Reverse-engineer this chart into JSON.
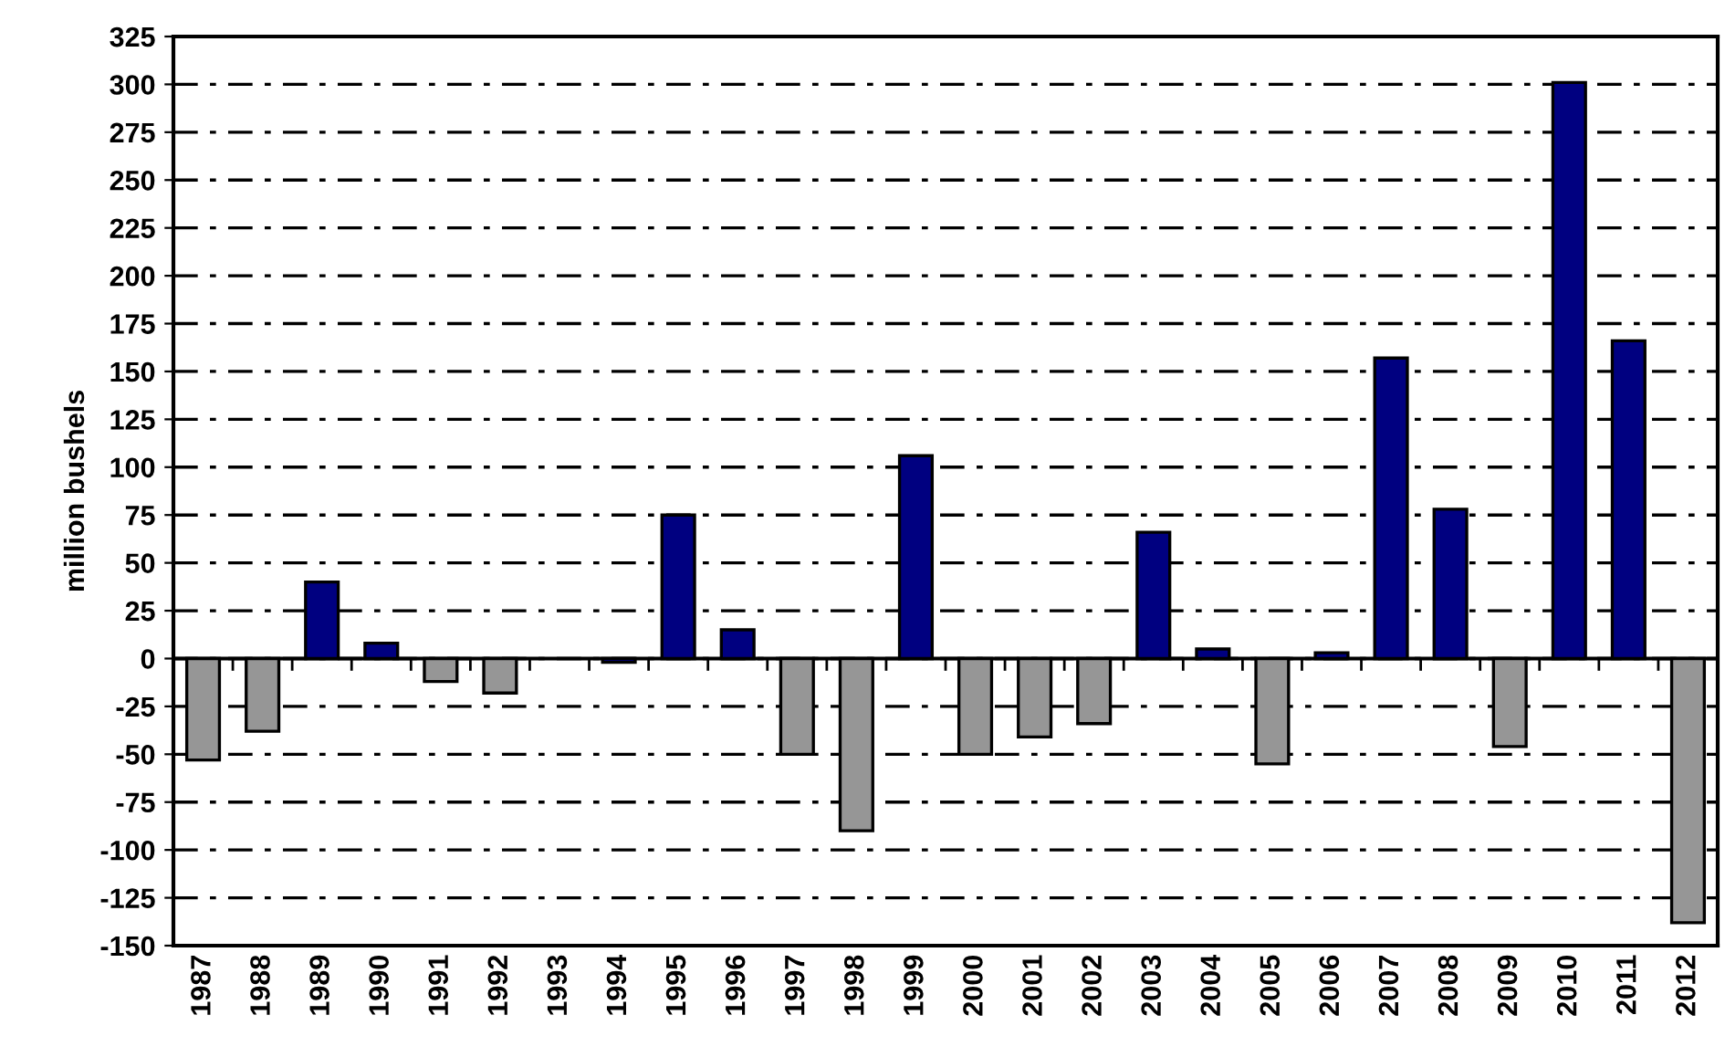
{
  "chart_data": {
    "type": "bar",
    "ylabel": "million bushels",
    "categories": [
      "1987",
      "1988",
      "1989",
      "1990",
      "1991",
      "1992",
      "1993",
      "1994",
      "1995",
      "1996",
      "1997",
      "1998",
      "1999",
      "2000",
      "2001",
      "2002",
      "2003",
      "2004",
      "2005",
      "2006",
      "2007",
      "2008",
      "2009",
      "2010",
      "2011",
      "2012"
    ],
    "values": [
      -53,
      -38,
      40,
      8,
      -12,
      -18,
      null,
      -2,
      75,
      15,
      -50,
      -90,
      106,
      -50,
      -41,
      -34,
      66,
      5,
      -55,
      3,
      157,
      78,
      -46,
      301,
      166,
      -138
    ],
    "colors": [
      "#969696",
      "#969696",
      "#000080",
      "#000080",
      "#969696",
      "#969696",
      "#000080",
      "#000080",
      "#000080",
      "#000080",
      "#969696",
      "#969696",
      "#000080",
      "#969696",
      "#969696",
      "#969696",
      "#000080",
      "#000080",
      "#969696",
      "#000080",
      "#000080",
      "#000080",
      "#969696",
      "#000080",
      "#000080",
      "#969696"
    ],
    "ylim": [
      -150,
      325
    ],
    "yticks": [
      -150,
      -125,
      -100,
      -75,
      -50,
      -25,
      0,
      25,
      50,
      75,
      100,
      125,
      150,
      175,
      200,
      225,
      250,
      275,
      300,
      325
    ],
    "ref_lines": [
      {
        "axis": "y",
        "value": 0,
        "color": "#000000"
      }
    ],
    "grid": "y",
    "legend": false
  }
}
